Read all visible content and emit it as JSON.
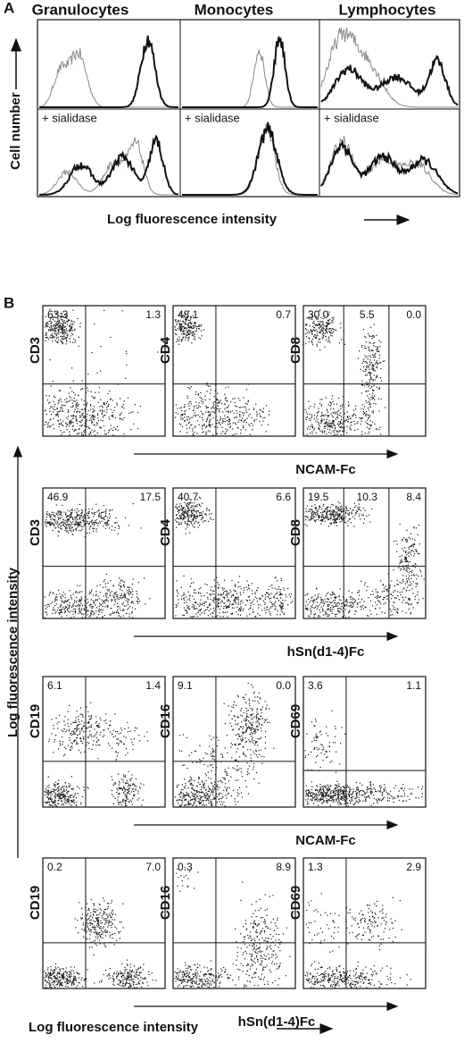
{
  "panel_a": {
    "label": "A",
    "columns": [
      "Granulocytes",
      "Monocytes",
      "Lymphocytes"
    ],
    "lower_row_labels": [
      "+ sialidase",
      "+ sialidase",
      "+ sialidase"
    ],
    "y_axis_label": "Cell number",
    "x_axis_label": "Log fluorescence intensity"
  },
  "panel_b": {
    "label": "B",
    "y_axis_label": "Log fluorescence intensity",
    "x_axis_label": "Log fluorescence intensity",
    "rows": [
      {
        "x_label": "NCAM-Fc",
        "plots": [
          {
            "y_label": "CD3",
            "quadrants": [
              "63.3",
              "1.3"
            ]
          },
          {
            "y_label": "CD4",
            "quadrants": [
              "48.1",
              "0.7"
            ]
          },
          {
            "y_label": "CD8",
            "quadrants": [
              "30.0",
              "5.5",
              "0.0"
            ]
          }
        ]
      },
      {
        "x_label": "hSn(d1-4)Fc",
        "plots": [
          {
            "y_label": "CD3",
            "quadrants": [
              "46.9",
              "17.5"
            ]
          },
          {
            "y_label": "CD4",
            "quadrants": [
              "40.7",
              "6.6"
            ]
          },
          {
            "y_label": "CD8",
            "quadrants": [
              "19.5",
              "10.3",
              "8.4"
            ]
          }
        ]
      },
      {
        "x_label": "NCAM-Fc",
        "plots": [
          {
            "y_label": "CD19",
            "quadrants": [
              "6.1",
              "1.4"
            ]
          },
          {
            "y_label": "CD16",
            "quadrants": [
              "9.1",
              "0.0"
            ]
          },
          {
            "y_label": "CD69",
            "quadrants": [
              "3.6",
              "1.1"
            ]
          }
        ]
      },
      {
        "x_label": "hSn(d1-4)Fc",
        "plots": [
          {
            "y_label": "CD19",
            "quadrants": [
              "0.2",
              "7.0"
            ]
          },
          {
            "y_label": "CD16",
            "quadrants": [
              "0.3",
              "8.9"
            ]
          },
          {
            "y_label": "CD69",
            "quadrants": [
              "1.3",
              "2.9"
            ]
          }
        ]
      }
    ]
  }
}
